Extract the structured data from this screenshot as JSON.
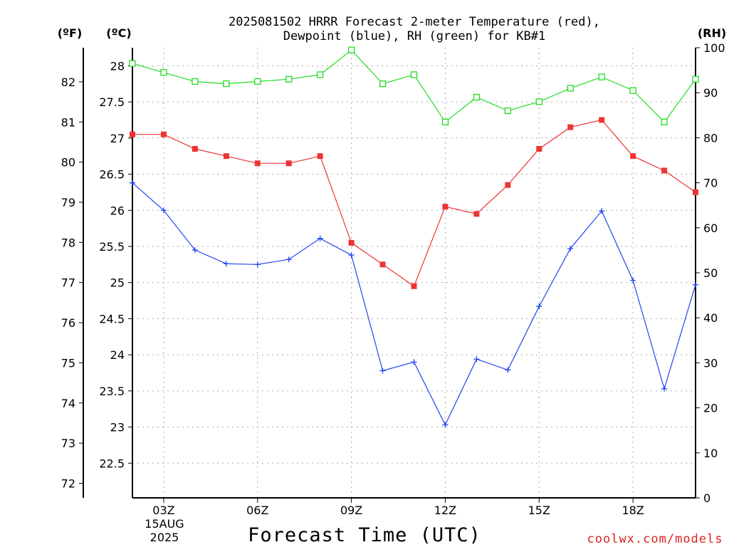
{
  "chart_data": {
    "type": "line",
    "title_line1": "2025081502 HRRR Forecast 2-meter Temperature (red),",
    "title_line2": "Dewpoint (blue), RH (green) for KB#1",
    "xlabel": "Forecast Time (UTC)",
    "unit_left_f": "(ºF)",
    "unit_left_c": "(ºC)",
    "unit_right": "(RH)",
    "watermark": "coolwx.com/models",
    "x_ticks": [
      {
        "hour": 3,
        "label": "03Z"
      },
      {
        "hour": 6,
        "label": "06Z"
      },
      {
        "hour": 9,
        "label": "09Z"
      },
      {
        "hour": 12,
        "label": "12Z"
      },
      {
        "hour": 15,
        "label": "15Z"
      },
      {
        "hour": 18,
        "label": "18Z"
      }
    ],
    "x_date_line1": "15AUG",
    "x_date_line2": "2025",
    "x_range_hours": [
      2,
      20
    ],
    "celsius_ticks": [
      "22.5",
      "23",
      "23.5",
      "24",
      "24.5",
      "25",
      "25.5",
      "26",
      "26.5",
      "27",
      "27.5",
      "28"
    ],
    "fahrenheit_ticks": [
      "72",
      "73",
      "74",
      "75",
      "76",
      "77",
      "78",
      "79",
      "80",
      "81",
      "82"
    ],
    "rh_ticks": [
      "0",
      "10",
      "20",
      "30",
      "40",
      "50",
      "60",
      "70",
      "80",
      "90",
      "100"
    ],
    "celsius_range": [
      22.02,
      28.25
    ],
    "rh_range": [
      0,
      100
    ],
    "grid": true,
    "x": [
      2,
      3,
      4,
      5,
      6,
      7,
      8,
      9,
      10,
      11,
      12,
      13,
      14,
      15,
      16,
      17,
      18,
      19,
      20
    ],
    "series": [
      {
        "name": "Temperature",
        "color": "#ee3333",
        "axis": "celsius",
        "marker": "filled-square",
        "values": [
          27.05,
          27.05,
          26.85,
          26.75,
          26.65,
          26.65,
          26.75,
          25.55,
          25.25,
          24.95,
          26.05,
          25.95,
          26.35,
          26.85,
          27.15,
          27.25,
          26.75,
          26.55,
          26.25
        ]
      },
      {
        "name": "Dewpoint",
        "color": "#2244ee",
        "axis": "celsius",
        "marker": "plus",
        "values": [
          26.38,
          26.0,
          25.45,
          25.26,
          25.25,
          25.32,
          25.61,
          25.38,
          23.78,
          23.9,
          23.03,
          23.94,
          23.79,
          24.67,
          25.47,
          25.99,
          25.03,
          23.53,
          24.97
        ]
      },
      {
        "name": "RH",
        "color": "#22dd22",
        "axis": "rh",
        "marker": "open-square",
        "values": [
          96.5,
          94.5,
          92.5,
          92.0,
          92.5,
          93.0,
          94.0,
          99.5,
          92.0,
          94.0,
          83.5,
          89.0,
          86.0,
          88.0,
          91.0,
          93.5,
          90.5,
          83.5,
          93.0
        ]
      }
    ]
  }
}
